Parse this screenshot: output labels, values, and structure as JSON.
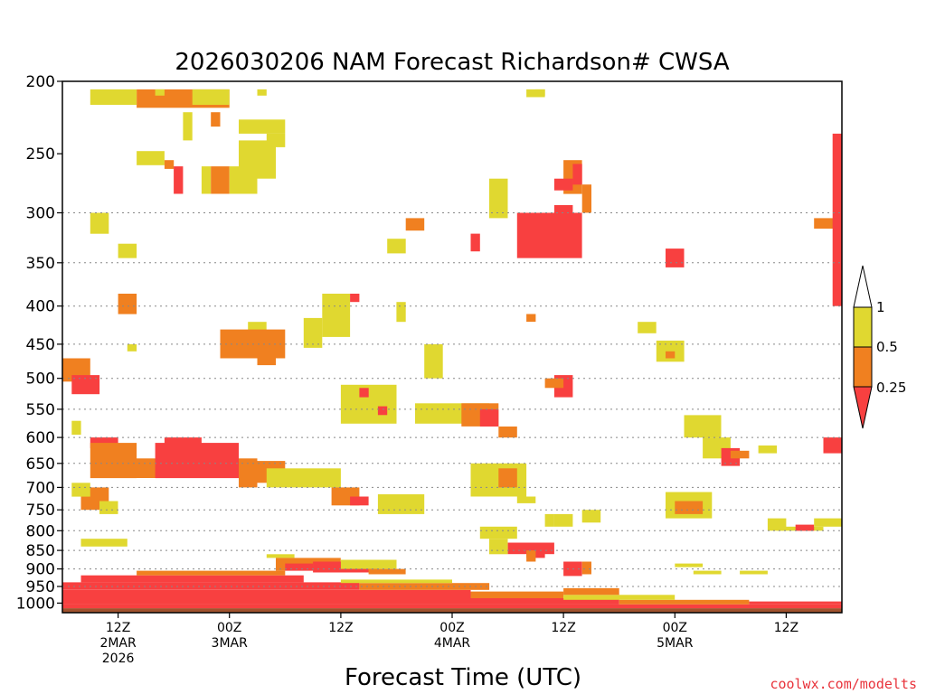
{
  "chart_data": {
    "type": "heatmap",
    "title": "2026030206 NAM Forecast Richardson# CWSA",
    "xlabel": "Forecast Time (UTC)",
    "ylabel": "",
    "y_scale": "log-pressure",
    "ylim": [
      1030,
      200
    ],
    "y_ticks": [
      200,
      250,
      300,
      350,
      400,
      450,
      500,
      550,
      600,
      650,
      700,
      750,
      800,
      850,
      900,
      950,
      1000
    ],
    "y_gridlines": [
      300,
      350,
      400,
      450,
      500,
      550,
      600,
      650,
      700,
      750,
      800,
      850,
      900,
      950
    ],
    "x_hours_range": [
      6,
      90
    ],
    "x_ticks": [
      {
        "hour": 12,
        "lines": [
          "12Z",
          "2MAR",
          "2026"
        ]
      },
      {
        "hour": 24,
        "lines": [
          "00Z",
          "3MAR"
        ]
      },
      {
        "hour": 36,
        "lines": [
          "12Z"
        ]
      },
      {
        "hour": 48,
        "lines": [
          "00Z",
          "4MAR"
        ]
      },
      {
        "hour": 60,
        "lines": [
          "12Z"
        ]
      },
      {
        "hour": 72,
        "lines": [
          "00Z",
          "5MAR"
        ]
      },
      {
        "hour": 84,
        "lines": [
          "12Z"
        ]
      }
    ],
    "legend": {
      "placement": "right",
      "levels": [
        "0.25",
        "0.5",
        "1"
      ],
      "bins": [
        {
          "range": "< 0.25",
          "color": "#f84040"
        },
        {
          "range": "0.25 - 0.5",
          "color": "#f08020"
        },
        {
          "range": "0.5 - 1",
          "color": "#e0d830"
        },
        {
          "range": "> 1",
          "color": "#ffffff"
        }
      ]
    },
    "ground_color": "#a0522d",
    "cells": [
      [
        14,
        24,
        205,
        217,
        "o"
      ],
      [
        20,
        24,
        205,
        215,
        "y"
      ],
      [
        9,
        14,
        205,
        215,
        "y"
      ],
      [
        16,
        17,
        205,
        209,
        "y"
      ],
      [
        27,
        28,
        205,
        209,
        "y"
      ],
      [
        56,
        58,
        205,
        210,
        "y"
      ],
      [
        57,
        58,
        205,
        209,
        "y"
      ],
      [
        19,
        20,
        220,
        240,
        "y"
      ],
      [
        22,
        23,
        220,
        230,
        "o"
      ],
      [
        25,
        30,
        225,
        235,
        "y"
      ],
      [
        14,
        17,
        248,
        259,
        "y"
      ],
      [
        25,
        29,
        240,
        270,
        "y"
      ],
      [
        28,
        30,
        235,
        245,
        "y"
      ],
      [
        17,
        18,
        255,
        262,
        "o"
      ],
      [
        18,
        19,
        260,
        283,
        "r"
      ],
      [
        21,
        22,
        260,
        283,
        "y"
      ],
      [
        22,
        24,
        260,
        283,
        "o"
      ],
      [
        24,
        27,
        260,
        283,
        "y"
      ],
      [
        43,
        45,
        305,
        317,
        "o"
      ],
      [
        60,
        62,
        255,
        283,
        "o"
      ],
      [
        59,
        61,
        270,
        280,
        "r"
      ],
      [
        59,
        61,
        293,
        337,
        "r"
      ],
      [
        55,
        62,
        300,
        345,
        "r"
      ],
      [
        61,
        62,
        258,
        275,
        "r"
      ],
      [
        62,
        63,
        275,
        300,
        "o"
      ],
      [
        52,
        54,
        270,
        305,
        "y"
      ],
      [
        50,
        51,
        320,
        338,
        "r"
      ],
      [
        41,
        43,
        325,
        340,
        "y"
      ],
      [
        71,
        73,
        335,
        355,
        "r"
      ],
      [
        87,
        90,
        305,
        315,
        "o"
      ],
      [
        89,
        90,
        235,
        400,
        "r"
      ],
      [
        9,
        11,
        300,
        320,
        "y"
      ],
      [
        12,
        14,
        330,
        345,
        "y"
      ],
      [
        34,
        37,
        385,
        440,
        "y"
      ],
      [
        32,
        34,
        415,
        455,
        "y"
      ],
      [
        37,
        38,
        385,
        395,
        "r"
      ],
      [
        42,
        43,
        395,
        420,
        "y"
      ],
      [
        45,
        47,
        450,
        500,
        "y"
      ],
      [
        6,
        9,
        470,
        505,
        "o"
      ],
      [
        7,
        10,
        495,
        525,
        "r"
      ],
      [
        12,
        14,
        385,
        410,
        "o"
      ],
      [
        13,
        14,
        450,
        460,
        "y"
      ],
      [
        26,
        28,
        420,
        440,
        "y"
      ],
      [
        23,
        30,
        430,
        470,
        "o"
      ],
      [
        27,
        29,
        440,
        480,
        "o"
      ],
      [
        36,
        42,
        510,
        575,
        "y"
      ],
      [
        38,
        39,
        515,
        530,
        "r"
      ],
      [
        40,
        41,
        545,
        560,
        "r"
      ],
      [
        44,
        52,
        540,
        575,
        "y"
      ],
      [
        49,
        53,
        540,
        580,
        "o"
      ],
      [
        51,
        53,
        550,
        580,
        "r"
      ],
      [
        53,
        55,
        580,
        600,
        "o"
      ],
      [
        59,
        61,
        495,
        530,
        "r"
      ],
      [
        58,
        60,
        500,
        515,
        "o"
      ],
      [
        56,
        57,
        410,
        420,
        "o"
      ],
      [
        68,
        70,
        420,
        435,
        "y"
      ],
      [
        70,
        73,
        445,
        475,
        "y"
      ],
      [
        71,
        72,
        460,
        470,
        "o"
      ],
      [
        73,
        77,
        560,
        600,
        "y"
      ],
      [
        75,
        78,
        600,
        640,
        "y"
      ],
      [
        77,
        79,
        620,
        655,
        "r"
      ],
      [
        78,
        80,
        625,
        640,
        "o"
      ],
      [
        81,
        83,
        615,
        630,
        "y"
      ],
      [
        88,
        90,
        600,
        630,
        "r"
      ],
      [
        7,
        8,
        570,
        595,
        "y"
      ],
      [
        9,
        12,
        600,
        620,
        "r"
      ],
      [
        9,
        14,
        610,
        680,
        "o"
      ],
      [
        11,
        24,
        640,
        680,
        "o"
      ],
      [
        16,
        25,
        610,
        680,
        "r"
      ],
      [
        17,
        21,
        600,
        620,
        "r"
      ],
      [
        23,
        25,
        640,
        680,
        "r"
      ],
      [
        25,
        27,
        640,
        700,
        "o"
      ],
      [
        27,
        30,
        645,
        690,
        "o"
      ],
      [
        28,
        36,
        660,
        700,
        "y"
      ],
      [
        8,
        11,
        700,
        750,
        "o"
      ],
      [
        10,
        12,
        730,
        760,
        "y"
      ],
      [
        7,
        9,
        690,
        720,
        "y"
      ],
      [
        35,
        38,
        700,
        740,
        "o"
      ],
      [
        37,
        39,
        720,
        740,
        "r"
      ],
      [
        40,
        45,
        715,
        760,
        "y"
      ],
      [
        50,
        56,
        650,
        720,
        "y"
      ],
      [
        53,
        55,
        660,
        700,
        "o"
      ],
      [
        55,
        57,
        720,
        735,
        "y"
      ],
      [
        71,
        76,
        710,
        770,
        "y"
      ],
      [
        72,
        75,
        730,
        760,
        "o"
      ],
      [
        83,
        88,
        790,
        800,
        "y"
      ],
      [
        85,
        87,
        785,
        800,
        "r"
      ],
      [
        87,
        90,
        770,
        790,
        "y"
      ],
      [
        51,
        55,
        790,
        820,
        "y"
      ],
      [
        52,
        54,
        820,
        860,
        "y"
      ],
      [
        54,
        59,
        830,
        860,
        "r"
      ],
      [
        56,
        58,
        840,
        870,
        "r"
      ],
      [
        56,
        57,
        850,
        880,
        "o"
      ],
      [
        60,
        62,
        880,
        920,
        "r"
      ],
      [
        62,
        63,
        880,
        915,
        "o"
      ],
      [
        8,
        13,
        820,
        840,
        "y"
      ],
      [
        28,
        31,
        860,
        870,
        "y"
      ],
      [
        29,
        36,
        870,
        905,
        "o"
      ],
      [
        30,
        33,
        885,
        905,
        "r"
      ],
      [
        33,
        40,
        880,
        910,
        "r"
      ],
      [
        36,
        42,
        875,
        900,
        "y"
      ],
      [
        39,
        43,
        900,
        915,
        "o"
      ],
      [
        72,
        75,
        885,
        895,
        "y"
      ],
      [
        74,
        77,
        905,
        915,
        "y"
      ],
      [
        79,
        82,
        905,
        915,
        "y"
      ],
      [
        58,
        59,
        760,
        790,
        "y"
      ],
      [
        59,
        61,
        760,
        790,
        "y"
      ],
      [
        62,
        64,
        750,
        780,
        "y"
      ],
      [
        82,
        84,
        770,
        800,
        "y"
      ]
    ],
    "bands": [
      {
        "from": 1030,
        "to": 1016,
        "hours": [
          6,
          90
        ],
        "color": "ground"
      },
      {
        "from": 1016,
        "to": 1004,
        "hours": [
          6,
          90
        ],
        "color": "r"
      },
      {
        "from": 1004,
        "to": 985,
        "hours": [
          6,
          66
        ],
        "color": "r"
      },
      {
        "from": 985,
        "to": 960,
        "hours": [
          6,
          50
        ],
        "color": "r"
      },
      {
        "from": 960,
        "to": 938,
        "hours": [
          6,
          38
        ],
        "color": "r"
      },
      {
        "from": 938,
        "to": 918,
        "hours": [
          8,
          32
        ],
        "color": "r"
      },
      {
        "from": 960,
        "to": 940,
        "hours": [
          38,
          52
        ],
        "color": "o"
      },
      {
        "from": 985,
        "to": 965,
        "hours": [
          50,
          60
        ],
        "color": "o"
      },
      {
        "from": 940,
        "to": 930,
        "hours": [
          36,
          48
        ],
        "color": "y"
      },
      {
        "from": 918,
        "to": 905,
        "hours": [
          14,
          30
        ],
        "color": "o"
      },
      {
        "from": 1004,
        "to": 990,
        "hours": [
          66,
          80
        ],
        "color": "o"
      },
      {
        "from": 1004,
        "to": 995,
        "hours": [
          80,
          90
        ],
        "color": "r"
      },
      {
        "from": 990,
        "to": 975,
        "hours": [
          60,
          72
        ],
        "color": "y"
      },
      {
        "from": 975,
        "to": 955,
        "hours": [
          60,
          66
        ],
        "color": "o"
      }
    ]
  },
  "legend_labels": {
    "l1": "1",
    "l2": "0.5",
    "l3": "0.25"
  },
  "credit": "coolwx.com/modelts"
}
